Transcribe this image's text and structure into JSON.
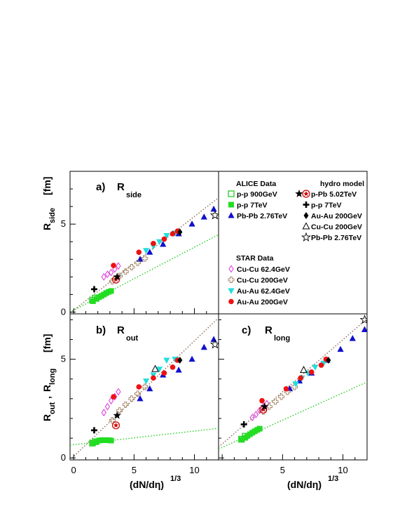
{
  "chart_data": {
    "type": "scatter",
    "xlabel": "(dN/dη)",
    "xlabel_sup": "1/3",
    "xlim": [
      -0.3,
      12
    ],
    "x_ticks": [
      "0",
      "5",
      "10"
    ],
    "panels": [
      {
        "id": "a",
        "label": "a)",
        "symbol": "R",
        "subscript": "side",
        "ylabel": "R",
        "ylabel_sub": "side",
        "yunit": "[fm]",
        "ylim": [
          -0.1,
          8
        ],
        "y_ticks": [
          "0",
          "5"
        ],
        "series": [
          {
            "key": "pp900",
            "marker": "square-open",
            "color": "#22cc22",
            "points": [
              [
                1.55,
                0.68
              ],
              [
                1.8,
                0.8
              ]
            ]
          },
          {
            "key": "pp7",
            "marker": "square",
            "color": "#22dd22",
            "points": [
              [
                1.6,
                0.62
              ],
              [
                1.9,
                0.75
              ],
              [
                2.1,
                0.85
              ],
              [
                2.3,
                0.92
              ],
              [
                2.5,
                1.0
              ],
              [
                2.7,
                1.08
              ],
              [
                2.9,
                1.15
              ],
              [
                3.1,
                1.2
              ]
            ]
          },
          {
            "key": "pbpb",
            "marker": "triangle-up",
            "color": "#1010cc",
            "points": [
              [
                5.5,
                3.0
              ],
              [
                6.3,
                3.4
              ],
              [
                7.4,
                3.85
              ],
              [
                8.7,
                4.45
              ],
              [
                9.8,
                5.0
              ],
              [
                10.8,
                5.4
              ],
              [
                11.6,
                5.85
              ]
            ]
          },
          {
            "key": "cucu62",
            "marker": "diamond-open",
            "color": "#dd33dd",
            "points": [
              [
                2.5,
                2.0
              ],
              [
                2.8,
                2.15
              ],
              [
                3.1,
                2.25
              ],
              [
                3.4,
                2.45
              ],
              [
                3.7,
                2.62
              ]
            ]
          },
          {
            "key": "cucu200",
            "marker": "cross-open",
            "color": "#a08060",
            "points": [
              [
                3.2,
                1.75
              ],
              [
                3.8,
                2.05
              ],
              [
                4.3,
                2.3
              ],
              [
                4.8,
                2.55
              ],
              [
                5.3,
                2.8
              ],
              [
                5.9,
                3.05
              ]
            ]
          },
          {
            "key": "auau62",
            "marker": "triangle-down",
            "color": "#22dddd",
            "points": [
              [
                6.0,
                3.5
              ],
              [
                6.6,
                3.75
              ],
              [
                7.1,
                4.0
              ],
              [
                7.7,
                4.35
              ],
              [
                8.4,
                4.5
              ]
            ]
          },
          {
            "key": "auau200",
            "marker": "circle",
            "color": "#ee1111",
            "points": [
              [
                3.3,
                2.65
              ],
              [
                5.4,
                3.4
              ],
              [
                6.6,
                3.9
              ],
              [
                7.5,
                4.15
              ],
              [
                8.2,
                4.45
              ],
              [
                8.6,
                4.6
              ]
            ]
          },
          {
            "key": "m_ppb",
            "marker": "star-circle",
            "color": "#cc0000",
            "points": [
              [
                3.5,
                1.85
              ]
            ]
          },
          {
            "key": "m_ppb_star",
            "marker": "star",
            "color": "#000000",
            "points": [
              [
                3.6,
                2.0
              ]
            ]
          },
          {
            "key": "m_pp7",
            "marker": "plus",
            "color": "#000000",
            "points": [
              [
                1.7,
                1.3
              ]
            ]
          },
          {
            "key": "m_auau",
            "marker": "diamond",
            "color": "#000000",
            "points": [
              [
                8.8,
                4.55
              ]
            ]
          },
          {
            "key": "m_cucu",
            "marker": "triangle-open",
            "color": "#000000",
            "points": []
          },
          {
            "key": "m_pbpb",
            "marker": "star-open",
            "color": "#000000",
            "points": [
              [
                11.7,
                5.5
              ]
            ]
          }
        ],
        "lines": [
          {
            "style": "brown-dotted",
            "x": [
              -0.3,
              12
            ],
            "y": [
              -0.05,
              6.5
            ]
          },
          {
            "style": "green-dotted",
            "x": [
              -0.3,
              12
            ],
            "y": [
              0.0,
              4.4
            ]
          }
        ]
      },
      {
        "id": "b",
        "label": "b)",
        "symbol": "R",
        "subscript": "out",
        "ylabel": "R",
        "ylabel_sub": "out",
        "ylabel2": "R",
        "ylabel2_sub": "long",
        "yunit": "[fm]",
        "ylim": [
          -0.1,
          7.3
        ],
        "y_ticks": [
          "0",
          "5"
        ],
        "series": [
          {
            "key": "pp900",
            "marker": "square-open",
            "color": "#22cc22",
            "points": [
              [
                1.55,
                0.75
              ],
              [
                1.8,
                0.82
              ]
            ]
          },
          {
            "key": "pp7",
            "marker": "square",
            "color": "#22dd22",
            "points": [
              [
                1.6,
                0.75
              ],
              [
                1.9,
                0.82
              ],
              [
                2.1,
                0.88
              ],
              [
                2.3,
                0.9
              ],
              [
                2.5,
                0.9
              ],
              [
                2.7,
                0.9
              ],
              [
                2.9,
                0.9
              ],
              [
                3.1,
                0.88
              ]
            ]
          },
          {
            "key": "pbpb",
            "marker": "triangle-up",
            "color": "#1010cc",
            "points": [
              [
                5.5,
                3.0
              ],
              [
                6.3,
                3.5
              ],
              [
                7.4,
                4.2
              ],
              [
                8.7,
                4.45
              ],
              [
                9.8,
                5.0
              ],
              [
                10.8,
                5.6
              ],
              [
                11.6,
                6.0
              ]
            ]
          },
          {
            "key": "cucu62",
            "marker": "diamond-open",
            "color": "#dd33dd",
            "points": [
              [
                2.5,
                2.3
              ],
              [
                2.8,
                2.6
              ],
              [
                3.1,
                2.9
              ],
              [
                3.4,
                3.1
              ],
              [
                3.7,
                3.35
              ]
            ]
          },
          {
            "key": "cucu200",
            "marker": "cross-open",
            "color": "#a08060",
            "points": [
              [
                3.2,
                1.9
              ],
              [
                3.8,
                2.4
              ],
              [
                4.3,
                2.7
              ],
              [
                4.8,
                3.0
              ],
              [
                5.3,
                3.25
              ],
              [
                5.9,
                3.6
              ]
            ]
          },
          {
            "key": "auau62",
            "marker": "triangle-down",
            "color": "#22dddd",
            "points": [
              [
                6.0,
                3.9
              ],
              [
                6.6,
                4.2
              ],
              [
                7.1,
                4.5
              ],
              [
                7.7,
                4.95
              ],
              [
                8.4,
                5.0
              ]
            ]
          },
          {
            "key": "auau200",
            "marker": "circle",
            "color": "#ee1111",
            "points": [
              [
                3.3,
                3.1
              ],
              [
                5.4,
                3.6
              ],
              [
                6.6,
                4.05
              ],
              [
                7.5,
                4.3
              ],
              [
                8.2,
                4.6
              ],
              [
                8.6,
                4.95
              ]
            ]
          },
          {
            "key": "m_ppb",
            "marker": "star-circle",
            "color": "#cc0000",
            "points": [
              [
                3.5,
                1.65
              ]
            ]
          },
          {
            "key": "m_ppb_star",
            "marker": "star",
            "color": "#000000",
            "points": [
              [
                3.6,
                2.15
              ]
            ]
          },
          {
            "key": "m_pp7",
            "marker": "plus",
            "color": "#000000",
            "points": [
              [
                1.7,
                1.4
              ]
            ]
          },
          {
            "key": "m_auau",
            "marker": "diamond",
            "color": "#000000",
            "points": [
              [
                8.8,
                4.95
              ]
            ]
          },
          {
            "key": "m_cucu",
            "marker": "triangle-open",
            "color": "#000000",
            "points": [
              [
                6.75,
                4.5
              ]
            ]
          },
          {
            "key": "m_pbpb",
            "marker": "star-open",
            "color": "#000000",
            "points": [
              [
                11.7,
                5.75
              ]
            ]
          }
        ],
        "lines": [
          {
            "style": "brown-dotted",
            "x": [
              -0.3,
              12
            ],
            "y": [
              -0.1,
              7.1
            ]
          },
          {
            "style": "green-dotted",
            "x": [
              -0.3,
              12
            ],
            "y": [
              0.65,
              1.5
            ]
          }
        ]
      },
      {
        "id": "c",
        "label": "c)",
        "symbol": "R",
        "subscript": "long",
        "ylim": [
          -0.1,
          7.3
        ],
        "series": [
          {
            "key": "pp900",
            "marker": "square-open",
            "color": "#22cc22",
            "points": [
              [
                1.6,
                0.95
              ],
              [
                1.9,
                1.1
              ]
            ]
          },
          {
            "key": "pp7",
            "marker": "square",
            "color": "#22dd22",
            "points": [
              [
                1.6,
                0.92
              ],
              [
                1.9,
                1.02
              ],
              [
                2.1,
                1.12
              ],
              [
                2.3,
                1.2
              ],
              [
                2.5,
                1.28
              ],
              [
                2.7,
                1.35
              ],
              [
                2.9,
                1.42
              ],
              [
                3.1,
                1.48
              ]
            ]
          },
          {
            "key": "pbpb",
            "marker": "triangle-up",
            "color": "#1010cc",
            "points": [
              [
                5.6,
                3.5
              ],
              [
                6.4,
                3.9
              ],
              [
                7.4,
                4.3
              ],
              [
                8.7,
                4.95
              ],
              [
                9.8,
                5.5
              ],
              [
                10.8,
                6.05
              ],
              [
                11.8,
                6.5
              ]
            ]
          },
          {
            "key": "cucu62",
            "marker": "diamond-open",
            "color": "#dd33dd",
            "points": [
              [
                2.5,
                2.05
              ],
              [
                2.8,
                2.2
              ],
              [
                3.1,
                2.4
              ],
              [
                3.4,
                2.6
              ],
              [
                3.7,
                2.75
              ]
            ]
          },
          {
            "key": "cucu200",
            "marker": "cross-open",
            "color": "#a08060",
            "points": [
              [
                3.4,
                2.35
              ],
              [
                3.9,
                2.6
              ],
              [
                4.4,
                2.85
              ],
              [
                4.9,
                3.1
              ],
              [
                5.4,
                3.35
              ],
              [
                6.0,
                3.6
              ]
            ]
          },
          {
            "key": "auau62",
            "marker": "triangle-down",
            "color": "#22dddd",
            "points": [
              [
                6.1,
                3.75
              ],
              [
                6.6,
                4.05
              ],
              [
                7.1,
                4.3
              ],
              [
                7.7,
                4.6
              ],
              [
                8.4,
                4.8
              ]
            ]
          },
          {
            "key": "auau200",
            "marker": "circle",
            "color": "#ee1111",
            "points": [
              [
                3.3,
                2.9
              ],
              [
                5.3,
                3.5
              ],
              [
                6.5,
                4.05
              ],
              [
                7.4,
                4.35
              ],
              [
                8.2,
                4.7
              ],
              [
                8.6,
                5.0
              ]
            ]
          },
          {
            "key": "m_ppb",
            "marker": "star-circle",
            "color": "#cc0000",
            "points": [
              [
                3.4,
                2.45
              ]
            ]
          },
          {
            "key": "m_ppb_star",
            "marker": "star",
            "color": "#000000",
            "points": [
              [
                3.5,
                2.6
              ]
            ]
          },
          {
            "key": "m_pp7",
            "marker": "plus",
            "color": "#000000",
            "points": [
              [
                1.8,
                1.7
              ]
            ]
          },
          {
            "key": "m_auau",
            "marker": "diamond",
            "color": "#000000",
            "points": [
              [
                8.8,
                4.95
              ]
            ]
          },
          {
            "key": "m_cucu",
            "marker": "triangle-open",
            "color": "#000000",
            "points": [
              [
                6.75,
                4.45
              ]
            ]
          },
          {
            "key": "m_pbpb",
            "marker": "star-open",
            "color": "#000000",
            "points": [
              [
                11.8,
                7.0
              ]
            ]
          }
        ],
        "lines": [
          {
            "style": "brown-dotted",
            "x": [
              -0.3,
              12
            ],
            "y": [
              0.55,
              7.05
            ]
          },
          {
            "style": "green-dotted",
            "x": [
              -0.3,
              12
            ],
            "y": [
              0.45,
              3.85
            ]
          }
        ]
      }
    ],
    "legend": {
      "alice_title": "ALICE Data",
      "alice": [
        {
          "key": "pp900",
          "label": "p-p 900GeV"
        },
        {
          "key": "pp7",
          "label": "p-p 7TeV"
        },
        {
          "key": "pbpb",
          "label": "Pb-Pb 2.76TeV"
        }
      ],
      "star_title": "STAR Data",
      "star": [
        {
          "key": "cucu62",
          "label": "Cu-Cu 62.4GeV"
        },
        {
          "key": "cucu200",
          "label": "Cu-Cu 200GeV"
        },
        {
          "key": "auau62",
          "label": "Au-Au 62.4GeV"
        },
        {
          "key": "auau200",
          "label": "Au-Au 200GeV"
        }
      ],
      "hydro_title": "hydro model",
      "hydro": [
        {
          "key": "m_ppb",
          "label": "p-Pb 5.02TeV"
        },
        {
          "key": "m_pp7",
          "label": "p-p 7TeV"
        },
        {
          "key": "m_auau",
          "label": "Au-Au 200GeV"
        },
        {
          "key": "m_cucu",
          "label": "Cu-Cu 200GeV"
        },
        {
          "key": "m_pbpb",
          "label": "Pb-Pb 2.76TeV"
        }
      ]
    }
  }
}
